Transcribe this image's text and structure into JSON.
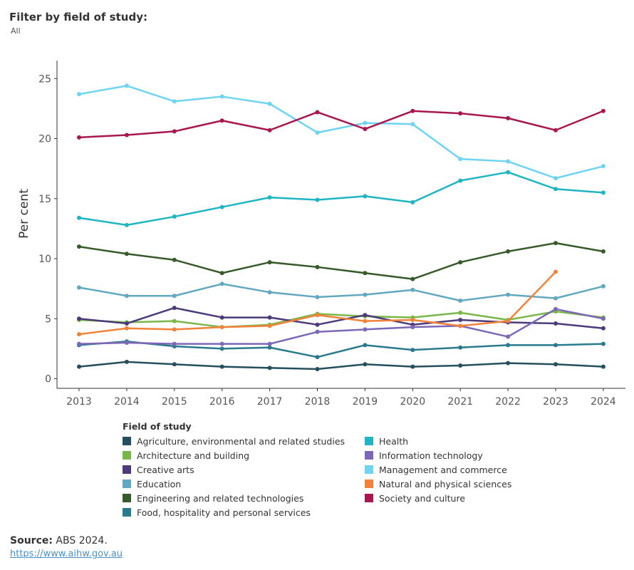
{
  "filter": {
    "title": "Filter by field of study:",
    "value": "All"
  },
  "chart_data": {
    "type": "line",
    "title": "",
    "xlabel": "",
    "ylabel": "Per cent",
    "x": [
      "2013",
      "2014",
      "2015",
      "2016",
      "2017",
      "2018",
      "2019",
      "2020",
      "2021",
      "2022",
      "2023",
      "2024"
    ],
    "ylim": [
      -0.8,
      26.5
    ],
    "yticks": [
      0,
      5,
      10,
      15,
      20,
      25
    ],
    "grid": false,
    "legend_title": "Field of study",
    "legend_position": "bottom",
    "series": [
      {
        "name": "Agriculture, environmental and related studies",
        "color": "#254f5e",
        "values": [
          1.0,
          1.4,
          1.2,
          1.0,
          0.9,
          0.8,
          1.2,
          1.0,
          1.1,
          1.3,
          1.2,
          1.0
        ]
      },
      {
        "name": "Architecture and building",
        "color": "#7ab648",
        "values": [
          4.9,
          4.7,
          4.8,
          4.3,
          4.5,
          5.4,
          5.2,
          5.1,
          5.5,
          4.9,
          5.6,
          5.1
        ]
      },
      {
        "name": "Creative arts",
        "color": "#4c3a7a",
        "values": [
          5.0,
          4.6,
          5.9,
          5.1,
          5.1,
          4.5,
          5.3,
          4.5,
          4.9,
          4.7,
          4.6,
          4.2
        ]
      },
      {
        "name": "Education",
        "color": "#62a8c0",
        "values": [
          7.6,
          6.9,
          6.9,
          7.9,
          7.2,
          6.8,
          7.0,
          7.4,
          6.5,
          7.0,
          6.7,
          7.7
        ]
      },
      {
        "name": "Engineering and related technologies",
        "color": "#375a2a",
        "values": [
          11.0,
          10.4,
          9.9,
          8.8,
          9.7,
          9.3,
          8.8,
          8.3,
          9.7,
          10.6,
          11.3,
          10.6
        ]
      },
      {
        "name": "Food, hospitality and personal services",
        "color": "#2a7a8e",
        "values": [
          2.8,
          3.1,
          2.7,
          2.5,
          2.6,
          1.8,
          2.8,
          2.4,
          2.6,
          2.8,
          2.8,
          2.9
        ]
      },
      {
        "name": "Health",
        "color": "#1fb5c3",
        "values": [
          13.4,
          12.8,
          13.5,
          14.3,
          15.1,
          14.9,
          15.2,
          14.7,
          16.5,
          17.2,
          15.8,
          15.5
        ]
      },
      {
        "name": "Information technology",
        "color": "#7c68b6",
        "values": [
          2.9,
          3.0,
          2.9,
          2.9,
          2.9,
          3.9,
          4.1,
          4.3,
          4.4,
          3.5,
          5.8,
          5.0
        ]
      },
      {
        "name": "Management and commerce",
        "color": "#6fd4f2",
        "values": [
          23.7,
          24.4,
          23.1,
          23.5,
          22.9,
          20.5,
          21.3,
          21.2,
          18.3,
          18.1,
          16.7,
          17.7
        ]
      },
      {
        "name": "Natural and physical sciences",
        "color": "#f2823a",
        "values": [
          3.7,
          4.2,
          4.1,
          4.3,
          4.4,
          5.3,
          4.8,
          4.9,
          4.4,
          4.8,
          8.9,
          null
        ]
      },
      {
        "name": "Society and culture",
        "color": "#a8174f",
        "values": [
          20.1,
          20.3,
          20.6,
          21.5,
          20.7,
          22.2,
          20.8,
          22.3,
          22.1,
          21.7,
          20.7,
          22.3
        ]
      }
    ]
  },
  "source": {
    "label": "Source:",
    "text": "ABS 2024.",
    "link": "https://www.aihw.gov.au"
  }
}
